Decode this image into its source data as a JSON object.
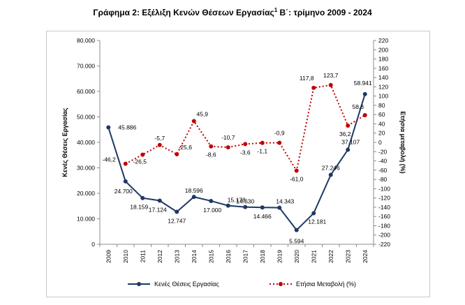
{
  "title": {
    "main": "Γράφημα 2: Εξέλιξη Κενών Θέσεων Εργασίας",
    "sup": "1",
    "rest": " Β΄: τρίμηνο 2009 - 2024"
  },
  "chart_data": {
    "type": "line",
    "title": "Γράφημα 2: Εξέλιξη Κενών Θέσεων Εργασίας1 Β΄: τρίμηνο 2009 - 2024",
    "categories": [
      "2009",
      "2010",
      "2011",
      "2012",
      "2013",
      "2014",
      "2015",
      "2016",
      "2017",
      "2018",
      "2019",
      "2020",
      "2021",
      "2022",
      "2023",
      "2024"
    ],
    "y_left": {
      "label": "Κενές Θέσεις Εργασίας",
      "ylim": [
        0,
        80000
      ],
      "ticks": [
        "0",
        "10.000",
        "20.000",
        "30.000",
        "40.000",
        "50.000",
        "60.000",
        "70.000",
        "80.000"
      ],
      "tick_values": [
        0,
        10000,
        20000,
        30000,
        40000,
        50000,
        60000,
        70000,
        80000
      ]
    },
    "y_right": {
      "label": "Ετήσια μεταβολή (%)",
      "ylim": [
        -220,
        220
      ],
      "ticks": [
        "-220",
        "-200",
        "-180",
        "-160",
        "-140",
        "-120",
        "-100",
        "-80",
        "-60",
        "-40",
        "-20",
        "0",
        "20",
        "40",
        "60",
        "80",
        "100",
        "120",
        "140",
        "160",
        "180",
        "200",
        "220"
      ],
      "tick_values": [
        -220,
        -200,
        -180,
        -160,
        -140,
        -120,
        -100,
        -80,
        -60,
        -40,
        -20,
        0,
        20,
        40,
        60,
        80,
        100,
        120,
        140,
        160,
        180,
        200,
        220
      ]
    },
    "series": [
      {
        "name": "Κενές Θέσεις Εργασίας",
        "axis": "left",
        "style": "solid",
        "color": "#1f3864",
        "values": [
          45886,
          24700,
          18159,
          17124,
          12747,
          18596,
          17000,
          15178,
          14630,
          14466,
          14343,
          5594,
          12181,
          27246,
          37107,
          58941
        ],
        "labels": [
          "45.886",
          "24.700",
          "18.159",
          "17.124",
          "12.747",
          "18.596",
          "17.000",
          "15.178",
          "14.630",
          "14.466",
          "14.343",
          "5.594",
          "12.181",
          "27.246",
          "37.107",
          "58.941"
        ]
      },
      {
        "name": "Ετήσια Μεταβολή (%)",
        "axis": "right",
        "style": "dotted",
        "color": "#c00000",
        "values": [
          null,
          -46.2,
          -26.5,
          -5.7,
          -25.6,
          45.9,
          -8.6,
          -10.7,
          -3.6,
          -1.1,
          -0.9,
          -61.0,
          117.8,
          123.7,
          36.2,
          58.8
        ],
        "labels": [
          "",
          "-46,2",
          "-26,5",
          "-5,7",
          "-25,6",
          "45,9",
          "-8,6",
          "-10,7",
          "-3,6",
          "-1,1",
          "-0,9",
          "-61,0",
          "117,8",
          "123,7",
          "36,2",
          "58,8"
        ]
      }
    ],
    "legend": {
      "placement": "bottom"
    },
    "grid": false
  }
}
